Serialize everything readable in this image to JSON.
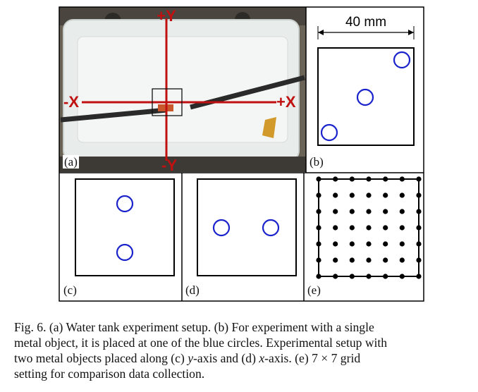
{
  "figure": {
    "panels": {
      "a": {
        "label": "(a)",
        "axis_labels": {
          "plus_y": "+Y",
          "minus_y": "-Y",
          "plus_x": "+X",
          "minus_x": "-X"
        }
      },
      "b": {
        "label": "(b)",
        "dimension": "40 mm"
      },
      "c": {
        "label": "(c)"
      },
      "d": {
        "label": "(d)"
      },
      "e": {
        "label": "(e)"
      }
    },
    "colors": {
      "circle": "#1a22cc",
      "axis": "#c01010",
      "frame": "#000000",
      "grid_dot": "#000000"
    }
  },
  "caption": {
    "line1": "Fig. 6.    (a) Water tank experiment setup. (b) For experiment with a single",
    "line2": "metal object, it is placed at one of the blue circles. Experimental setup with",
    "line3_pre": "two metal objects placed along (c) ",
    "line3_y": "y",
    "line3_mid": "-axis and (d) ",
    "line3_x": "x",
    "line3_post": "-axis. (e) 7 × 7 grid",
    "line4": "setting for comparison data collection."
  }
}
